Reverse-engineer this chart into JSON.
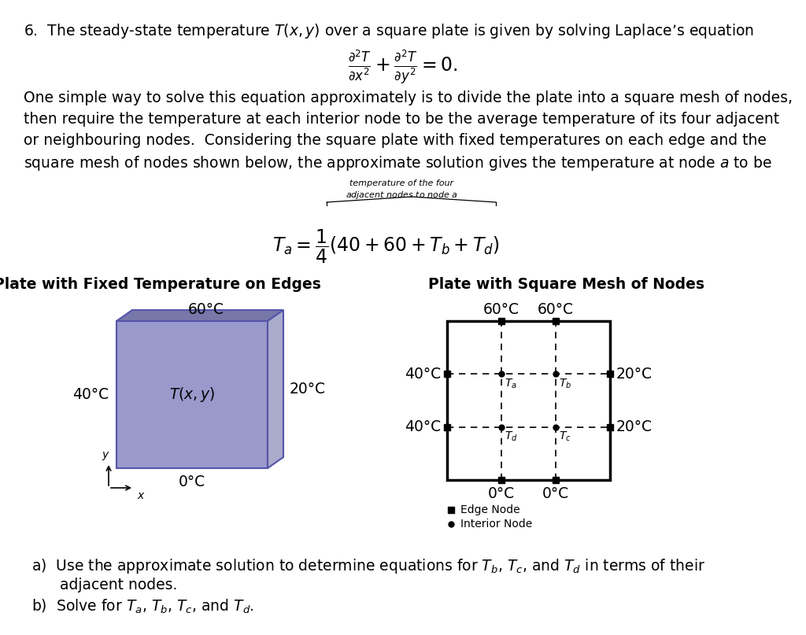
{
  "bg_color": "#ffffff",
  "text_color": "#000000",
  "title_line": "6.  The steady-state temperature $T(x,y)$ over a square plate is given by solving Laplace’s equation",
  "laplace_eq": "$\\frac{\\partial^2 T}{\\partial x^2} + \\frac{\\partial^2 T}{\\partial y^2} = 0.$",
  "paragraph_lines": [
    "One simple way to solve this equation approximately is to divide the plate into a square mesh of nodes,",
    "then require the temperature at each interior node to be the average temperature of its four adjacent",
    "or neighbouring nodes.  Considering the square plate with fixed temperatures on each edge and the",
    "square mesh of nodes shown below, the approximate solution gives the temperature at node $a$ to be"
  ],
  "brace_label_line1": "temperature of the four",
  "brace_label_line2": "adjacent nodes to node $a$",
  "formula": "$T_a = \\dfrac{1}{4}(40 + 60 + T_b + T_d)$",
  "left_title": "Plate with Fixed Temperature on Edges",
  "right_title": "Plate with Square Mesh of Nodes",
  "plate_face_color": "#9999cc",
  "plate_top_color": "#7777aa",
  "plate_right_color": "#aaaacc",
  "plate_edge_color": "#5555aa",
  "left_top_label": "60°C",
  "left_left_label": "40°C",
  "left_right_label": "20°C",
  "left_bottom_label": "0°C",
  "left_center_label": "$T(x,y)$",
  "right_top_left_label": "60°C",
  "right_top_right_label": "60°C",
  "right_left_top_label": "40°C",
  "right_right_top_label": "20°C",
  "right_left_bot_label": "40°C",
  "right_right_bot_label": "20°C",
  "right_bot_left_label": "0°C",
  "right_bot_right_label": "0°C",
  "node_Ta": "$T_a$",
  "node_Tb": "$T_b$",
  "node_Td": "$T_d$",
  "node_Tc": "$T_c$",
  "legend_edge": "Edge Node",
  "legend_interior": "Interior Node",
  "part_a_line1": "a)  Use the approximate solution to determine equations for $T_b$, $T_c$, and $T_d$ in terms of their",
  "part_a_line2": "      adjacent nodes.",
  "part_b": "b)  Solve for $T_a$, $T_b$, $T_c$, and $T_d$."
}
